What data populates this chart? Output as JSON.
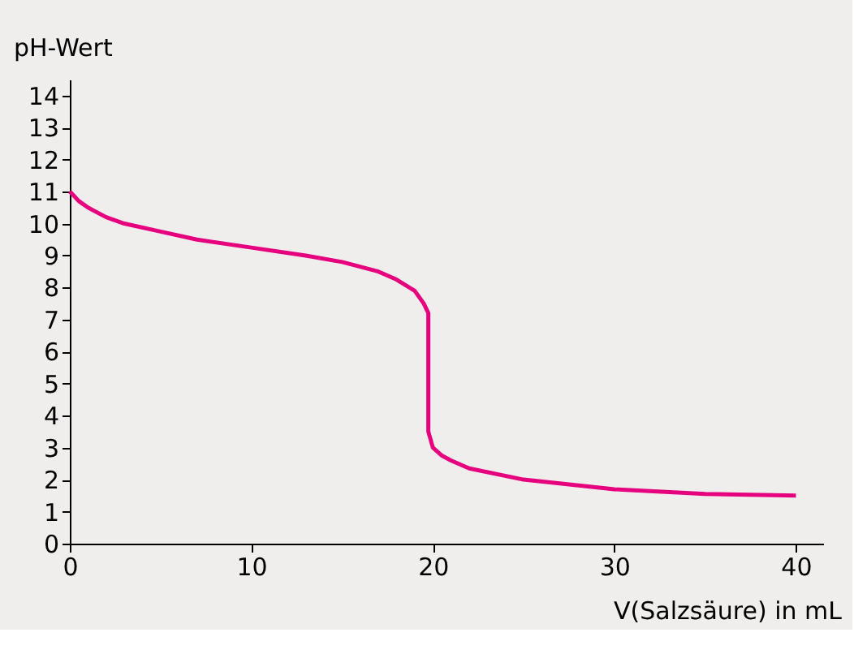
{
  "chart_data": {
    "type": "line",
    "xlabel": "V(Salzsäure) in mL",
    "ylabel": "pH-Wert",
    "x": [
      0,
      0.5,
      1,
      2,
      3,
      5,
      7,
      10,
      13,
      15,
      17,
      18,
      19,
      19.5,
      19.75,
      19.75,
      20,
      20.5,
      21,
      22,
      25,
      30,
      35,
      40
    ],
    "series": [
      {
        "color": "#e6007e",
        "values": [
          11,
          10.7,
          10.5,
          10.2,
          10.0,
          9.75,
          9.5,
          9.25,
          9.0,
          8.8,
          8.5,
          8.25,
          7.9,
          7.5,
          7.2,
          3.5,
          3.0,
          2.75,
          2.6,
          2.35,
          2.0,
          1.7,
          1.55,
          1.5
        ]
      }
    ],
    "xlim": [
      0,
      41.5
    ],
    "ylim": [
      0,
      14.5
    ],
    "xticks": [
      0,
      10,
      20,
      30,
      40
    ],
    "yticks": [
      0,
      1,
      2,
      3,
      4,
      5,
      6,
      7,
      8,
      9,
      10,
      11,
      12,
      13,
      14
    ],
    "grid": false,
    "legend": false,
    "marker": "none",
    "line_style": "solid"
  }
}
